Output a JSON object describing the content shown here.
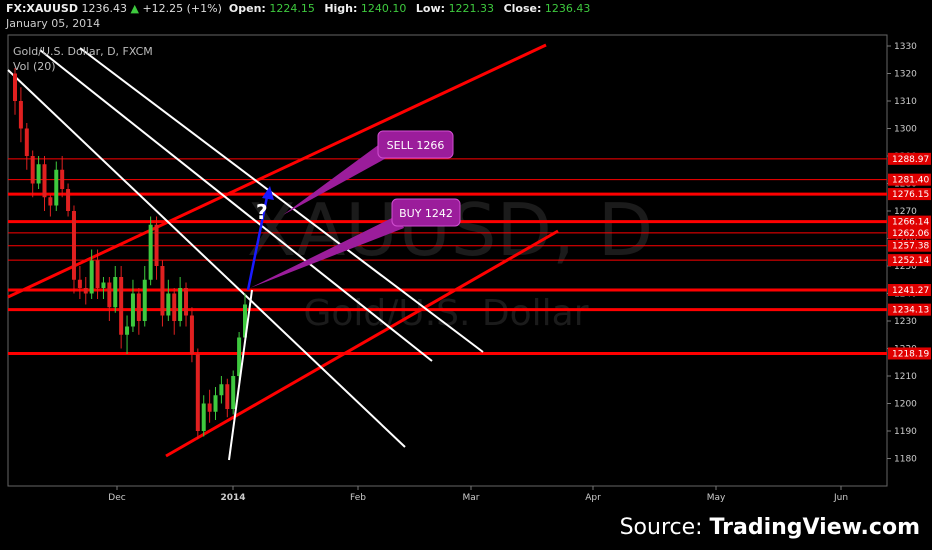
{
  "header": {
    "symbol": "FX:XAUUSD",
    "last": "1236.43",
    "change": "+12.25 (+1%)",
    "open_label": "Open:",
    "open": "1224.15",
    "high_label": "High:",
    "high": "1240.10",
    "low_label": "Low:",
    "low": "1221.33",
    "close_label": "Close:",
    "close": "1236.43",
    "date": "January 05, 2014"
  },
  "legend": {
    "title": "Gold/U.S. Dollar, D, FXCM",
    "volume": "Vol (20)"
  },
  "watermark": {
    "symbol": "XAUUSD, D",
    "name": "Gold/U.S. Dollar"
  },
  "source": {
    "prefix": "Source: ",
    "brand": "TradingView.com"
  },
  "colors": {
    "background": "#000000",
    "up": "#3ec93e",
    "down": "#e02020",
    "level": "#ff0000",
    "trendline": "#ffffff",
    "callout": "#9b1d9b",
    "arrow": "#1a1aff"
  },
  "chart_data": {
    "type": "candlestick",
    "title": "Gold/U.S. Dollar, D, FXCM",
    "x_ticks": [
      "Dec",
      "2014",
      "Feb",
      "Mar",
      "Apr",
      "May",
      "Jun"
    ],
    "y_ticks": [
      1180,
      1190,
      1200,
      1210,
      1220,
      1230,
      1240,
      1250,
      1260,
      1270,
      1280,
      1290,
      1300,
      1310,
      1320,
      1330
    ],
    "ylim": [
      1171,
      1333
    ],
    "horizontal_levels": [
      1288.97,
      1281.4,
      1276.15,
      1266.14,
      1262.06,
      1257.38,
      1252.14,
      1241.27,
      1234.13,
      1218.19
    ],
    "level_labels": [
      "1288.97",
      "1281.40",
      "1276.15",
      "1266.14",
      "1262.06",
      "1257.38",
      "1252.14",
      "1241.27",
      "1234.13",
      "1218.19"
    ],
    "bold_levels": [
      1276.15,
      1266.14,
      1241.27,
      1234.13,
      1218.19
    ],
    "annotations": [
      {
        "text": "SELL 1266",
        "price": 1266
      },
      {
        "text": "BUY 1242",
        "price": 1242
      },
      {
        "text": "?"
      }
    ],
    "candles": [
      [
        1320,
        1322,
        1305,
        1310
      ],
      [
        1310,
        1315,
        1295,
        1300
      ],
      [
        1300,
        1302,
        1285,
        1290
      ],
      [
        1290,
        1292,
        1275,
        1280
      ],
      [
        1280,
        1290,
        1278,
        1287
      ],
      [
        1287,
        1290,
        1270,
        1275
      ],
      [
        1275,
        1276,
        1268,
        1272
      ],
      [
        1272,
        1288,
        1270,
        1285
      ],
      [
        1285,
        1290,
        1275,
        1278
      ],
      [
        1278,
        1280,
        1268,
        1270
      ],
      [
        1270,
        1272,
        1240,
        1245
      ],
      [
        1245,
        1250,
        1238,
        1242
      ],
      [
        1242,
        1246,
        1236,
        1240
      ],
      [
        1240,
        1256,
        1238,
        1252
      ],
      [
        1252,
        1256,
        1238,
        1242
      ],
      [
        1242,
        1246,
        1238,
        1244
      ],
      [
        1244,
        1246,
        1230,
        1235
      ],
      [
        1235,
        1250,
        1233,
        1246
      ],
      [
        1246,
        1250,
        1220,
        1225
      ],
      [
        1225,
        1232,
        1218,
        1228
      ],
      [
        1228,
        1245,
        1226,
        1240
      ],
      [
        1240,
        1242,
        1225,
        1230
      ],
      [
        1230,
        1250,
        1228,
        1245
      ],
      [
        1245,
        1268,
        1243,
        1265
      ],
      [
        1265,
        1268,
        1245,
        1250
      ],
      [
        1250,
        1252,
        1228,
        1232
      ],
      [
        1232,
        1245,
        1230,
        1240
      ],
      [
        1240,
        1242,
        1225,
        1230
      ],
      [
        1230,
        1246,
        1228,
        1242
      ],
      [
        1242,
        1244,
        1228,
        1232
      ],
      [
        1232,
        1235,
        1215,
        1218
      ],
      [
        1218,
        1220,
        1187,
        1190
      ],
      [
        1190,
        1203,
        1188,
        1200
      ],
      [
        1200,
        1205,
        1193,
        1197
      ],
      [
        1197,
        1206,
        1194,
        1203
      ],
      [
        1203,
        1210,
        1200,
        1207
      ],
      [
        1207,
        1209,
        1195,
        1198
      ],
      [
        1198,
        1212,
        1196,
        1210
      ],
      [
        1210,
        1226,
        1208,
        1224
      ],
      [
        1224,
        1240,
        1221,
        1236
      ]
    ]
  }
}
